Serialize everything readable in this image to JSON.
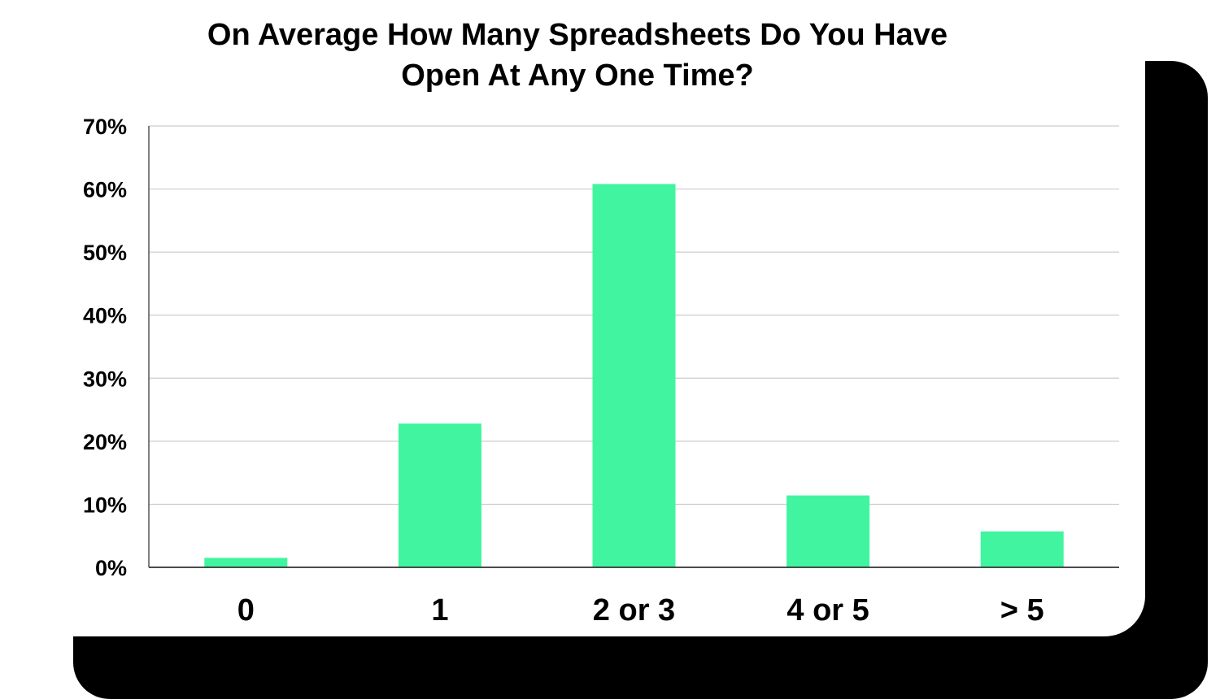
{
  "chart_data": {
    "type": "bar",
    "title_lines": [
      "On Average How Many Spreadsheets Do You Have",
      "Open At Any One Time?"
    ],
    "categories": [
      "0",
      "1",
      "2 or 3",
      "4 or 5",
      "> 5"
    ],
    "values": [
      1.5,
      22.8,
      60.8,
      11.4,
      5.7
    ],
    "y_ticks": [
      "0%",
      "10%",
      "20%",
      "30%",
      "40%",
      "50%",
      "60%",
      "70%"
    ],
    "ylim": [
      0,
      70
    ],
    "grid": true,
    "bar_color": "#41f5a0"
  }
}
